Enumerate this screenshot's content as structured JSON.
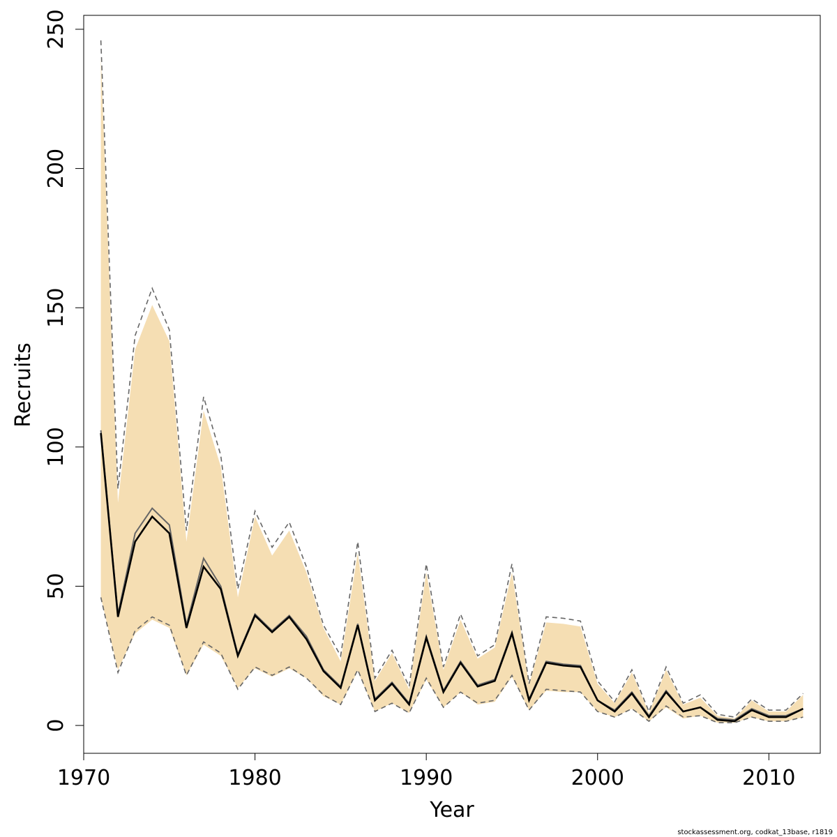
{
  "chart_data": {
    "type": "line",
    "title": "",
    "xlabel": "Year",
    "ylabel": "Recruits",
    "xlim": [
      1970,
      2013
    ],
    "ylim": [
      -10,
      255
    ],
    "xticks": [
      1970,
      1980,
      1990,
      2000,
      2010
    ],
    "yticks": [
      0,
      50,
      100,
      150,
      200,
      250
    ],
    "grid": false,
    "legend": "none",
    "colors": {
      "band_fill": "#f5deb3",
      "band_edge": "#666666",
      "outer_line": "#666666",
      "median_line": "#000000"
    },
    "x": [
      1971,
      1972,
      1973,
      1974,
      1975,
      1976,
      1977,
      1978,
      1979,
      1980,
      1981,
      1982,
      1983,
      1984,
      1985,
      1986,
      1987,
      1988,
      1989,
      1990,
      1991,
      1992,
      1993,
      1994,
      1995,
      1996,
      1997,
      1998,
      1999,
      2000,
      2001,
      2002,
      2003,
      2004,
      2005,
      2006,
      2007,
      2008,
      2009,
      2010,
      2011,
      2012
    ],
    "series": [
      {
        "values": [
          105,
          39,
          66,
          75,
          69,
          35,
          57,
          49,
          25,
          39.5,
          33.5,
          39,
          31,
          19.5,
          13.5,
          36,
          9,
          15,
          7.5,
          31.5,
          12,
          22.5,
          14,
          16,
          33,
          9,
          22.5,
          21.5,
          21,
          9,
          5,
          11.5,
          3,
          12,
          5,
          6.5,
          2,
          1.5,
          5.5,
          3,
          3,
          6
        ]
      },
      {
        "values": [
          106,
          40,
          69,
          78,
          72,
          36,
          60,
          50,
          25.5,
          40,
          34,
          39.5,
          32,
          20,
          14,
          36.5,
          9.5,
          15.5,
          8,
          32,
          12.5,
          23,
          14.5,
          16.5,
          33.5,
          9.5,
          23,
          22,
          21.5,
          9,
          5.5,
          12,
          3.5,
          12.5,
          5,
          6.5,
          2.5,
          2,
          6,
          3.5,
          3.5,
          6
        ]
      }
    ],
    "bands": [
      {
        "lower": [
          46,
          19,
          34,
          39,
          36,
          18,
          30,
          26,
          13,
          21,
          18,
          21,
          17,
          11,
          7.5,
          20,
          5,
          8,
          4.5,
          17,
          6.5,
          12,
          8,
          9,
          18,
          5.5,
          13,
          12.5,
          12,
          5,
          3,
          6,
          1.5,
          7,
          3,
          3.5,
          1,
          1,
          3,
          1.5,
          1.5,
          3
        ],
        "upper": [
          246,
          85,
          140,
          157,
          142,
          70,
          118,
          97,
          49,
          77,
          64,
          73,
          57,
          36,
          25,
          66,
          17,
          27,
          14,
          58,
          21,
          40,
          25,
          29,
          58,
          15,
          39,
          38.5,
          37.5,
          16,
          8.5,
          20,
          5,
          21,
          8,
          11,
          4,
          3,
          9.5,
          5.5,
          5.5,
          11.5
        ]
      },
      {
        "lower": [
          46,
          20,
          33,
          38,
          35,
          18,
          29,
          25,
          13.5,
          20.5,
          17.5,
          20.5,
          17,
          10.5,
          7.5,
          19.5,
          5,
          8,
          4.5,
          16.5,
          6.5,
          12,
          7.5,
          8.5,
          17.5,
          5.5,
          12.5,
          12,
          12,
          5,
          3,
          6,
          1.5,
          6.5,
          2.5,
          3.5,
          1,
          1,
          3,
          1.5,
          1.5,
          3
        ],
        "upper": [
          240,
          80,
          135,
          151,
          138,
          66,
          113,
          93,
          46,
          75,
          61,
          70,
          55,
          35,
          23,
          62,
          16,
          26,
          13,
          55,
          20,
          38,
          24,
          28,
          55,
          14.5,
          37,
          36.5,
          35.5,
          15,
          8,
          19,
          4.5,
          20,
          7.5,
          10,
          3.5,
          2.5,
          9,
          5,
          5,
          11
        ]
      }
    ]
  },
  "caption": "stockassessment.org, codkat_13base, r1819"
}
